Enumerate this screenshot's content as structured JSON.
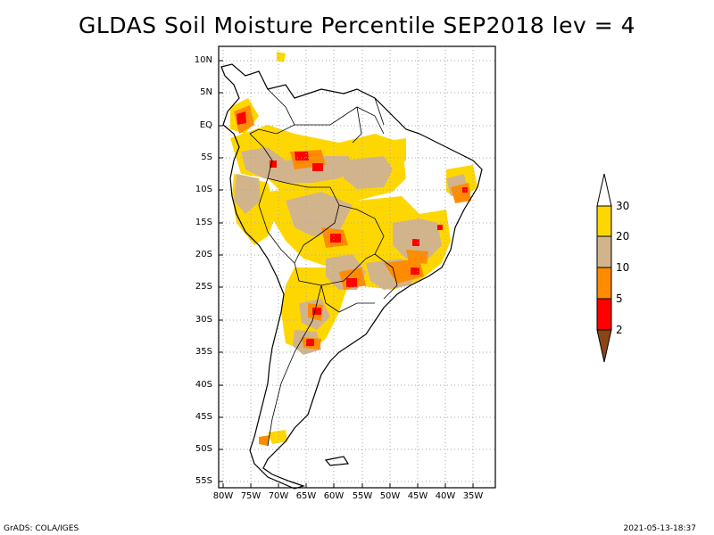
{
  "title": "GLDAS Soil Moisture Percentile SEP2018 lev = 4",
  "lat_ticks": [
    "10N",
    "5N",
    "EQ",
    "5S",
    "10S",
    "15S",
    "20S",
    "25S",
    "30S",
    "35S",
    "40S",
    "45S",
    "50S",
    "55S"
  ],
  "lon_ticks": [
    "80W",
    "75W",
    "70W",
    "65W",
    "60W",
    "55W",
    "50W",
    "45W",
    "40W",
    "35W"
  ],
  "legend": {
    "labels": [
      "30",
      "20",
      "10",
      "5",
      "2"
    ],
    "bins": [
      {
        "range": "20-30",
        "color": "#ffd700"
      },
      {
        "range": "10-20",
        "color": "#d2b48c"
      },
      {
        "range": "5-10",
        "color": "#ff8c00"
      },
      {
        "range": "2-5",
        "color": "#ff0000"
      },
      {
        "range": "<2",
        "color": "#8b4513"
      }
    ],
    "top_color": "#ffffff"
  },
  "footer": {
    "left": "GrADS: COLA/IGES",
    "right": "2021-05-13-18:37"
  }
}
